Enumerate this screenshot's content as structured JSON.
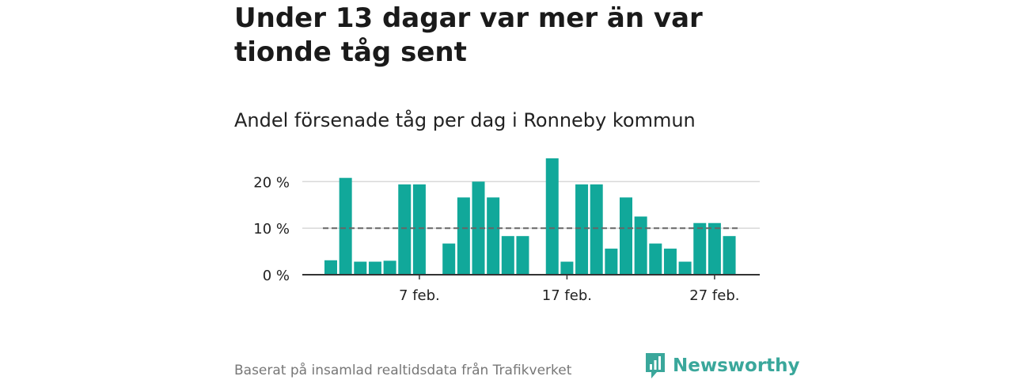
{
  "title": "Under 13 dagar var mer än var tionde tåg sent",
  "subtitle": "Andel försenade tåg per dag i Ronneby kommun",
  "source": "Baserat på insamlad realtidsdata från Trafikverket",
  "brand": {
    "name": "Newsworthy",
    "color": "#3aa79b"
  },
  "colors": {
    "bar": "#11a89a",
    "reference": "#666666",
    "grid": "#d9d9d9",
    "axis": "#333333"
  },
  "chart_data": {
    "type": "bar",
    "unit": "%",
    "ylim": [
      0,
      25
    ],
    "yticks": [
      {
        "value": 0,
        "label": "0 %"
      },
      {
        "value": 10,
        "label": "10 %"
      },
      {
        "value": 20,
        "label": "20 %"
      }
    ],
    "grid": true,
    "reference_line": 10,
    "xticks": [
      {
        "day": 7,
        "label": "7 feb."
      },
      {
        "day": 17,
        "label": "17 feb."
      },
      {
        "day": 27,
        "label": "27 feb."
      }
    ],
    "days": [
      1,
      2,
      3,
      4,
      5,
      6,
      7,
      8,
      9,
      10,
      11,
      12,
      13,
      14,
      15,
      16,
      17,
      18,
      19,
      20,
      21,
      22,
      23,
      24,
      25,
      26,
      27,
      28
    ],
    "values": [
      3.1,
      20.8,
      2.8,
      2.8,
      3.0,
      19.4,
      19.4,
      null,
      6.7,
      16.6,
      20.0,
      16.6,
      8.3,
      8.3,
      null,
      25.0,
      2.8,
      19.4,
      19.4,
      5.6,
      16.6,
      12.5,
      6.7,
      5.6,
      2.8,
      11.1,
      11.1,
      8.3
    ]
  }
}
